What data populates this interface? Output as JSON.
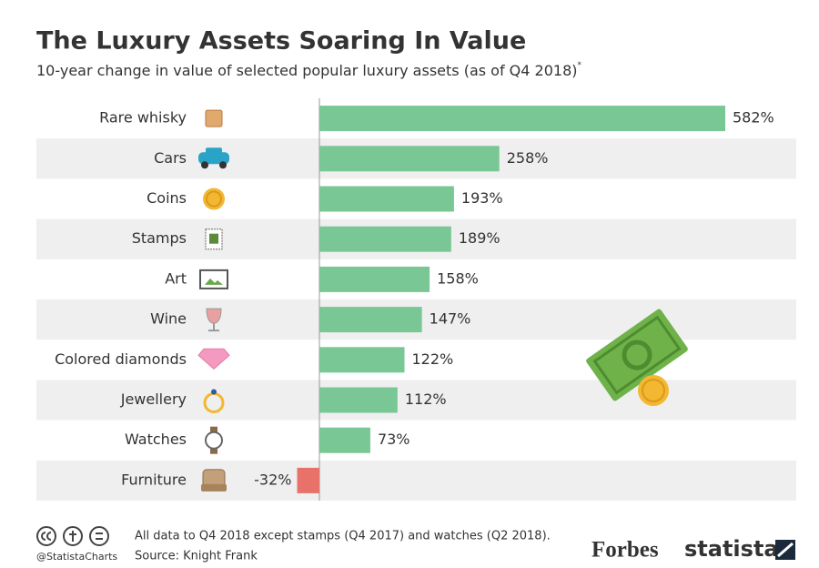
{
  "chart_data": {
    "type": "bar",
    "orientation": "horizontal",
    "title": "The Luxury Assets Soaring In Value",
    "subtitle": "10-year change in value of selected popular luxury assets (as of Q4 2018)",
    "subtitle_mark": "*",
    "categories": [
      "Rare whisky",
      "Cars",
      "Coins",
      "Stamps",
      "Art",
      "Wine",
      "Colored diamonds",
      "Jewellery",
      "Watches",
      "Furniture"
    ],
    "values": [
      582,
      258,
      193,
      189,
      158,
      147,
      122,
      112,
      73,
      -32
    ],
    "value_labels": [
      "582%",
      "258%",
      "193%",
      "189%",
      "158%",
      "147%",
      "122%",
      "112%",
      "73%",
      "-32%"
    ],
    "color": "#79c795",
    "negative_color": "#e8726a",
    "footnote": "All data to Q4 2018 except stamps (Q4 2017) and watches (Q2 2018).",
    "source": "Source: Knight Frank",
    "handle": "@StatistaCharts",
    "brand_left": "Forbes",
    "brand_right": "statista"
  }
}
